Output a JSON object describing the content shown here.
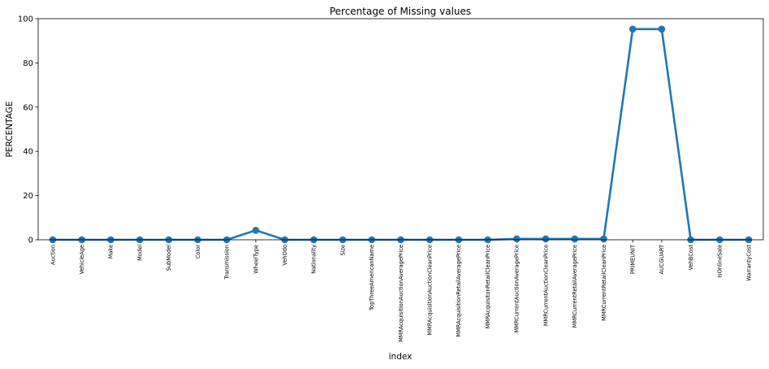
{
  "chart_data": {
    "type": "line",
    "title": "Percentage of Missing values",
    "xlabel": "index",
    "ylabel": "PERCENTAGE",
    "ylim": [
      0,
      100
    ],
    "yticks": [
      0,
      20,
      40,
      60,
      80,
      100
    ],
    "grid": false,
    "legend": "none",
    "categories": [
      "Auction",
      "VehicleAge",
      "Make",
      "Model",
      "SubModel",
      "Color",
      "Transmission",
      "WheelType",
      "VehOdo",
      "Nationality",
      "Size",
      "TopThreeAmericanName",
      "MMRAcquisitionAuctionAveragePrice",
      "MMRAcquisitionAuctionCleanPrice",
      "MMRAcquisitionRetailAveragePrice",
      "MMRAcquisitonRetailCleanPrice",
      "MMRCurrentAuctionAveragePrice",
      "MMRCurrentAuctionCleanPrice",
      "MMRCurrentRetailAveragePrice",
      "MMRCurrentRetailCleanPrice",
      "PRIMEUNIT",
      "AUCGUART",
      "VehBCost",
      "IsOnlineSale",
      "WarrantyCost"
    ],
    "values": [
      0,
      0,
      0,
      0,
      0,
      0,
      0,
      4.3,
      0,
      0,
      0,
      0,
      0,
      0,
      0,
      0,
      0.4,
      0.4,
      0.4,
      0.4,
      95.3,
      95.3,
      0,
      0,
      0
    ],
    "line_color": "#1f77b4"
  }
}
